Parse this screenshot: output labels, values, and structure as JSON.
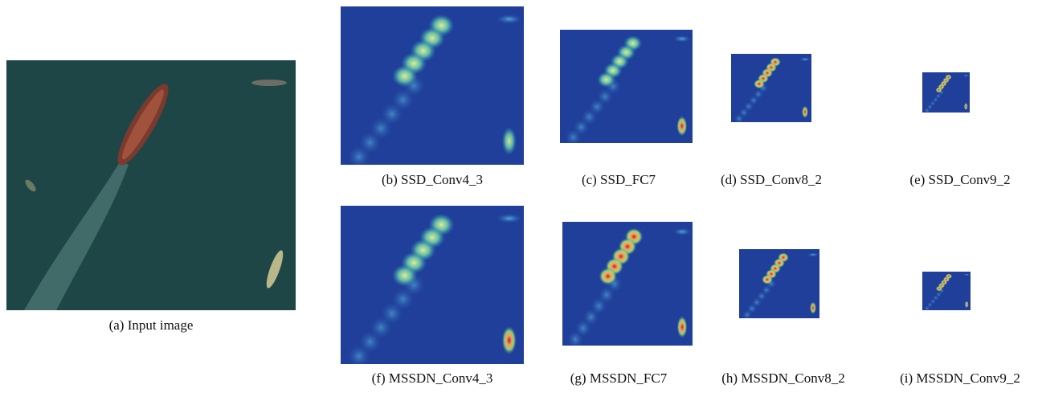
{
  "panels": [
    {
      "caption": "(a) Input image"
    },
    {
      "caption": "(b) SSD_Conv4_3"
    },
    {
      "caption": "(c) SSD_FC7"
    },
    {
      "caption": "(d) SSD_Conv8_2"
    },
    {
      "caption": "(e) SSD_Conv9_2"
    },
    {
      "caption": "(f) MSSDN_Conv4_3"
    },
    {
      "caption": "(g) MSSDN_FC7"
    },
    {
      "caption": "(h) MSSDN_Conv8_2"
    },
    {
      "caption": "(i) MSSDN_Conv9_2"
    }
  ]
}
